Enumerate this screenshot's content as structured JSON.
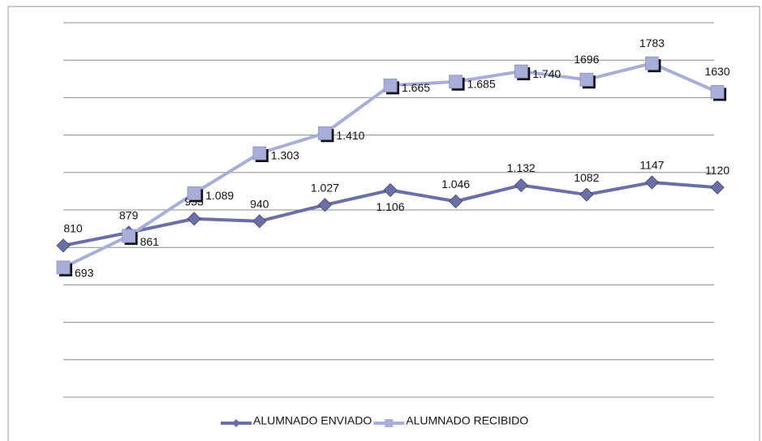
{
  "chart_data": {
    "type": "line",
    "categories": [
      null,
      null,
      null,
      null,
      null,
      null,
      null,
      null,
      null,
      null,
      null
    ],
    "series": [
      {
        "name": "ALUMNADO ENVIADO",
        "color": "#6a6fa6",
        "marker": "diamond",
        "values": [
          810,
          879,
          953,
          940,
          1027,
          1106,
          1046,
          1132,
          1082,
          1147,
          1120
        ],
        "value_labels": [
          "810",
          "879",
          "953",
          "940",
          "1.027",
          "1.106",
          "1.046",
          "1.132",
          "1082",
          "1147",
          "1120"
        ]
      },
      {
        "name": "ALUMNADO RECIBIDO",
        "color": "#a9aed8",
        "marker": "square",
        "values": [
          693,
          861,
          1089,
          1303,
          1410,
          1665,
          1685,
          1740,
          1696,
          1783,
          1630
        ],
        "value_labels": [
          "693",
          "861",
          "1.089",
          "1.303",
          "1.410",
          "1.665",
          "1.685",
          "1.740",
          "1696",
          "1783",
          "1630"
        ]
      }
    ],
    "ylim": [
      0,
      2000
    ],
    "yticks": [
      0,
      200,
      400,
      600,
      800,
      1000,
      1200,
      1400,
      1600,
      1800,
      2000
    ],
    "grid": true,
    "legend": "bottom"
  }
}
